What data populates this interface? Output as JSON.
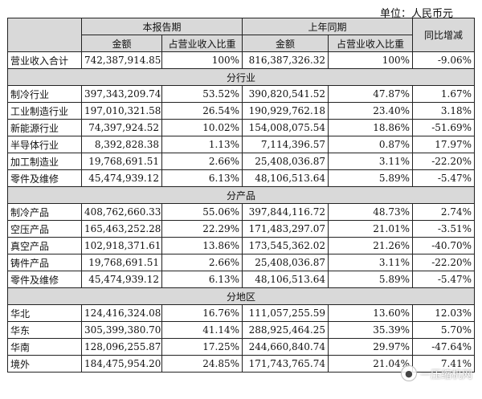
{
  "unit_label": "单位：人民币元",
  "headers": {
    "current_period": "本报告期",
    "prior_period": "上年同期",
    "yoy": "同比增减",
    "amount": "金额",
    "ratio": "占营业收入比重"
  },
  "total_row": {
    "label": "营业收入合计",
    "cur_amt": "742,387,914.85",
    "cur_pct": "100%",
    "prev_amt": "816,387,326.32",
    "prev_pct": "100%",
    "yoy": "-9.06%"
  },
  "sections": [
    {
      "title": "分行业",
      "rows": [
        {
          "label": "制冷行业",
          "cur_amt": "397,343,209.74",
          "cur_pct": "53.52%",
          "prev_amt": "390,820,541.52",
          "prev_pct": "47.87%",
          "yoy": "1.67%"
        },
        {
          "label": "工业制造行业",
          "cur_amt": "197,010,321.58",
          "cur_pct": "26.54%",
          "prev_amt": "190,929,762.18",
          "prev_pct": "23.40%",
          "yoy": "3.18%"
        },
        {
          "label": "新能源行业",
          "cur_amt": "74,397,924.52",
          "cur_pct": "10.02%",
          "prev_amt": "154,008,075.54",
          "prev_pct": "18.86%",
          "yoy": "-51.69%"
        },
        {
          "label": "半导体行业",
          "cur_amt": "8,392,828.38",
          "cur_pct": "1.13%",
          "prev_amt": "7,114,396.57",
          "prev_pct": "0.87%",
          "yoy": "17.97%"
        },
        {
          "label": "加工制造业",
          "cur_amt": "19,768,691.51",
          "cur_pct": "2.66%",
          "prev_amt": "25,408,036.87",
          "prev_pct": "3.11%",
          "yoy": "-22.20%"
        },
        {
          "label": "零件及维修",
          "cur_amt": "45,474,939.12",
          "cur_pct": "6.13%",
          "prev_amt": "48,106,513.64",
          "prev_pct": "5.89%",
          "yoy": "-5.47%"
        }
      ]
    },
    {
      "title": "分产品",
      "rows": [
        {
          "label": "制冷产品",
          "cur_amt": "408,762,660.33",
          "cur_pct": "55.06%",
          "prev_amt": "397,844,116.72",
          "prev_pct": "48.73%",
          "yoy": "2.74%"
        },
        {
          "label": "空压产品",
          "cur_amt": "165,463,252.28",
          "cur_pct": "22.29%",
          "prev_amt": "171,483,297.07",
          "prev_pct": "21.01%",
          "yoy": "-3.51%"
        },
        {
          "label": "真空产品",
          "cur_amt": "102,918,371.61",
          "cur_pct": "13.86%",
          "prev_amt": "173,545,362.02",
          "prev_pct": "21.26%",
          "yoy": "-40.70%"
        },
        {
          "label": "铸件产品",
          "cur_amt": "19,768,691.51",
          "cur_pct": "2.66%",
          "prev_amt": "25,408,036.87",
          "prev_pct": "3.11%",
          "yoy": "-22.20%"
        },
        {
          "label": "零件及维修",
          "cur_amt": "45,474,939.12",
          "cur_pct": "6.13%",
          "prev_amt": "48,106,513.64",
          "prev_pct": "5.89%",
          "yoy": "-5.47%"
        }
      ]
    },
    {
      "title": "分地区",
      "rows": [
        {
          "label": "华北",
          "cur_amt": "124,416,324.08",
          "cur_pct": "16.76%",
          "prev_amt": "111,057,255.59",
          "prev_pct": "13.60%",
          "yoy": "12.03%"
        },
        {
          "label": "华东",
          "cur_amt": "305,399,380.70",
          "cur_pct": "41.14%",
          "prev_amt": "288,925,464.25",
          "prev_pct": "35.39%",
          "yoy": "5.70%"
        },
        {
          "label": "华南",
          "cur_amt": "128,096,255.87",
          "cur_pct": "17.25%",
          "prev_amt": "244,660,840.74",
          "prev_pct": "29.97%",
          "yoy": "-47.64%"
        },
        {
          "label": "境外",
          "cur_amt": "184,475,954.20",
          "cur_pct": "24.85%",
          "prev_amt": "171,743,765.74",
          "prev_pct": "21.04%",
          "yoy": "7.41%"
        }
      ]
    }
  ],
  "watermark": {
    "text": "一压缩机网",
    "logo_icon": "wechat-logo-icon"
  }
}
